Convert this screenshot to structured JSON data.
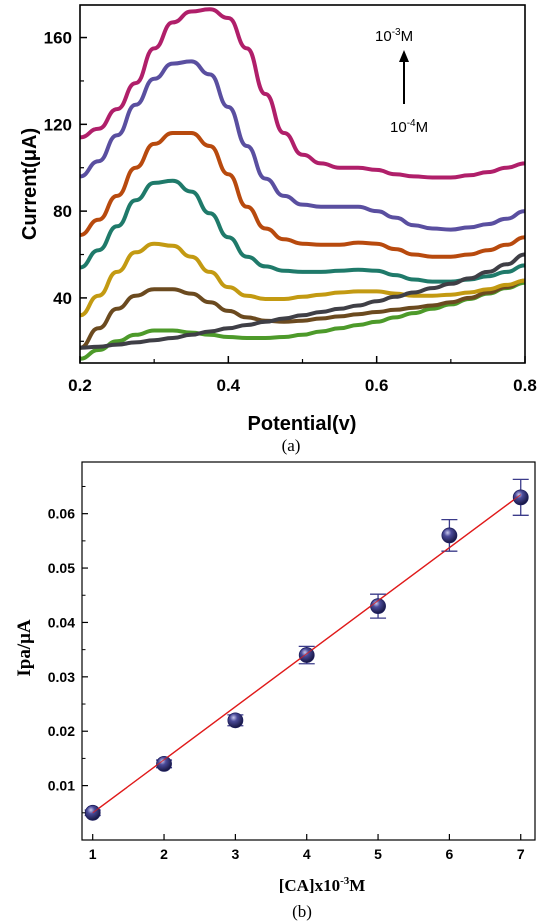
{
  "panel_a": {
    "caption": "(a)",
    "annotation": {
      "top_base": "10",
      "top_exp": "-3",
      "top_unit": "M",
      "bottom_base": "10",
      "bottom_exp": "-4",
      "bottom_unit": "M"
    }
  },
  "panel_b": {
    "caption": "(b)",
    "xlabel_main": "[CA]x10",
    "xlabel_exp": "-3",
    "xlabel_unit": "M"
  },
  "chart_data": [
    {
      "type": "line",
      "xlabel": "Potential(v)",
      "ylabel": "Current(μA)",
      "xlim": [
        0.2,
        0.8
      ],
      "ylim": [
        10,
        175
      ],
      "xticks": [
        0.2,
        0.4,
        0.6,
        0.8
      ],
      "xtick_labels": [
        "0.2",
        "0.4",
        "0.6",
        "0.8"
      ],
      "yticks": [
        40,
        80,
        120,
        160
      ],
      "ytick_labels": [
        "40",
        "80",
        "120",
        "160"
      ],
      "x": [
        0.2,
        0.225,
        0.25,
        0.275,
        0.3,
        0.325,
        0.35,
        0.375,
        0.4,
        0.425,
        0.45,
        0.475,
        0.5,
        0.525,
        0.55,
        0.575,
        0.6,
        0.625,
        0.65,
        0.675,
        0.7,
        0.725,
        0.75,
        0.775,
        0.8
      ],
      "series": [
        {
          "color": "#4d9a2a",
          "values": [
            12,
            16,
            20,
            23,
            25,
            25,
            24,
            23,
            22,
            21.5,
            21.5,
            22,
            23,
            24.5,
            26,
            27.5,
            29,
            31,
            33,
            35,
            37,
            39.5,
            42,
            44.5,
            47
          ]
        },
        {
          "color": "#6b4a1f",
          "values": [
            17,
            26,
            35,
            41,
            44,
            44,
            42,
            38,
            34,
            31,
            29.5,
            29,
            29.5,
            30.5,
            31.5,
            32.5,
            33.5,
            34.5,
            35.5,
            36.5,
            38,
            40,
            42.5,
            45,
            48
          ]
        },
        {
          "color": "#c39a12",
          "values": [
            32,
            41,
            52,
            61,
            65,
            64,
            59,
            52,
            45,
            41,
            39.5,
            39.5,
            40.5,
            41.5,
            42.5,
            43,
            43,
            42,
            41,
            41,
            41.5,
            42.5,
            44,
            46,
            48
          ]
        },
        {
          "color": "#1f7a6a",
          "values": [
            54,
            62,
            73,
            85,
            93,
            94,
            89,
            79,
            68,
            59,
            54.5,
            52.5,
            52,
            52,
            52.5,
            53,
            52.5,
            50.5,
            48.5,
            47.5,
            47.5,
            48.5,
            50,
            52,
            55
          ]
        },
        {
          "color": "#b84a0e",
          "values": [
            69,
            76,
            87,
            100,
            111,
            116,
            116,
            110,
            97,
            82,
            72,
            67,
            65,
            64.5,
            64.5,
            65.5,
            65,
            62.5,
            60,
            59,
            59,
            60,
            62,
            64.5,
            68
          ]
        },
        {
          "color": "#5a4fa0",
          "values": [
            96,
            103,
            115,
            129,
            141,
            148,
            149,
            143,
            128,
            110,
            95,
            87,
            83,
            82,
            82,
            82,
            80,
            77,
            73.5,
            72,
            71.5,
            72.5,
            74,
            76.5,
            80
          ]
        },
        {
          "color": "#b01f6a",
          "values": [
            114,
            118,
            127,
            139,
            155,
            167,
            172,
            173,
            169,
            155,
            134,
            116,
            106,
            102,
            100,
            100,
            99,
            97,
            96,
            95.5,
            95.5,
            96.5,
            98,
            100,
            102
          ]
        },
        {
          "color": "#3f3f46",
          "values": [
            17,
            17.5,
            18.5,
            19.5,
            20.5,
            21.5,
            23,
            24.5,
            26,
            27.5,
            29,
            30.5,
            32,
            33.5,
            35,
            36.5,
            38.5,
            40.5,
            42.5,
            44.5,
            46.5,
            49,
            52,
            55.5,
            60
          ]
        }
      ]
    },
    {
      "type": "scatter",
      "xlabel": "[CA]x10-3M",
      "ylabel": "Ipa/μA",
      "xlim": [
        0.85,
        7.2
      ],
      "ylim": [
        0,
        0.0695
      ],
      "xticks": [
        1,
        2,
        3,
        4,
        5,
        6,
        7
      ],
      "xtick_labels": [
        "1",
        "2",
        "3",
        "4",
        "5",
        "6",
        "7"
      ],
      "yticks": [
        0.01,
        0.02,
        0.03,
        0.04,
        0.05,
        0.06
      ],
      "ytick_labels": [
        "0.01",
        "0.02",
        "0.03",
        "0.04",
        "0.05",
        "0.06"
      ],
      "x": [
        1,
        2,
        3,
        4,
        5,
        6,
        7
      ],
      "y": [
        0.005,
        0.014,
        0.022,
        0.034,
        0.043,
        0.056,
        0.063
      ],
      "error": [
        0.0005,
        0.0007,
        0.001,
        0.0016,
        0.0022,
        0.0029,
        0.0033
      ],
      "fit_line": {
        "x": [
          1,
          7
        ],
        "y": [
          0.005,
          0.0635
        ],
        "color": "#e01b1b"
      },
      "marker_color": "#1f1f5e",
      "errorbar_color": "#3b3b8a"
    }
  ]
}
